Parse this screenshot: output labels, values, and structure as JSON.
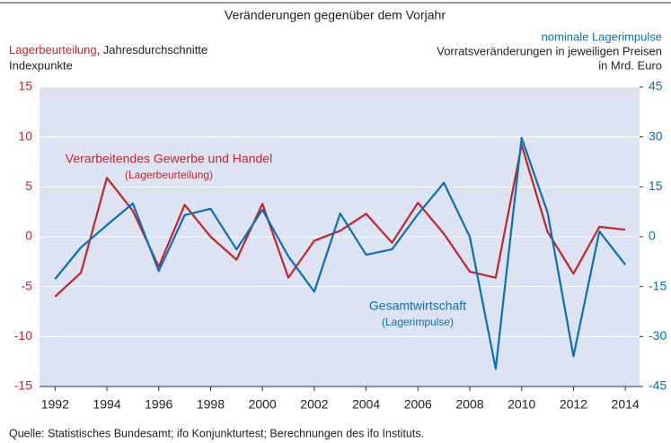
{
  "chart_data": {
    "type": "line",
    "title": "Veränderungen gegenüber dem Vorjahr",
    "left_axis_label": {
      "highlight": "Lagerbeurteilung",
      "rest": ", Jahresdurchschnitte",
      "unit": "Indexpunkte"
    },
    "right_axis_label": {
      "name": "nominale Lagerimpulse",
      "line2": "Vorratsveränderungen in jeweiligen Preisen",
      "line3": "in Mrd. Euro"
    },
    "annotations": [
      {
        "text": "Verarbeitendes Gewerbe und Handel",
        "sub": "(Lagerbeurteilung)"
      },
      {
        "text": "Gesamtwirtschaft",
        "sub": "(Lagerimpulse)"
      }
    ],
    "source": "Quelle: Statistisches Bundesamt; ifo Konjunkturtest; Berechnungen des ifo Instituts.",
    "x": [
      1992,
      1993,
      1994,
      1995,
      1996,
      1997,
      1998,
      1999,
      2000,
      2001,
      2002,
      2003,
      2004,
      2005,
      2006,
      2007,
      2008,
      2009,
      2010,
      2011,
      2012,
      2013,
      2014
    ],
    "xlim": [
      1991.4,
      2014.55
    ],
    "xticks": [
      1992,
      1994,
      1996,
      1998,
      2000,
      2002,
      2004,
      2006,
      2008,
      2010,
      2012,
      2014
    ],
    "ylim": [
      -15,
      15
    ],
    "yticks": [
      -15,
      -10,
      -5,
      0,
      5,
      10,
      15
    ],
    "y2lim": [
      -45,
      45
    ],
    "y2ticks": [
      -45,
      -30,
      -15,
      0,
      15,
      30,
      45
    ],
    "grid": true,
    "series": [
      {
        "name": "Verarbeitendes Gewerbe und Handel (Lagerbeurteilung)",
        "color": "#c0272d",
        "axis": "y",
        "values": [
          -6.0,
          -3.6,
          5.9,
          2.6,
          -3.0,
          3.2,
          0,
          -2.3,
          3.3,
          -4.1,
          -0.4,
          0.6,
          2.3,
          -0.6,
          3.4,
          0.3,
          -3.5,
          -4.1,
          9.2,
          0.5,
          -3.7,
          1.0,
          0.7
        ]
      },
      {
        "name": "Gesamtwirtschaft (Lagerimpulse)",
        "color": "#0b6fb5",
        "axis": "y2",
        "values": [
          -12.7,
          -3.2,
          3.5,
          10,
          -10.3,
          6.5,
          8.4,
          -3.8,
          8.1,
          -5.9,
          -16.5,
          7.0,
          -5.4,
          -3.8,
          6.8,
          16.2,
          0,
          -39.7,
          29.7,
          7.3,
          -35.9,
          1.6,
          -8.4
        ]
      }
    ]
  }
}
